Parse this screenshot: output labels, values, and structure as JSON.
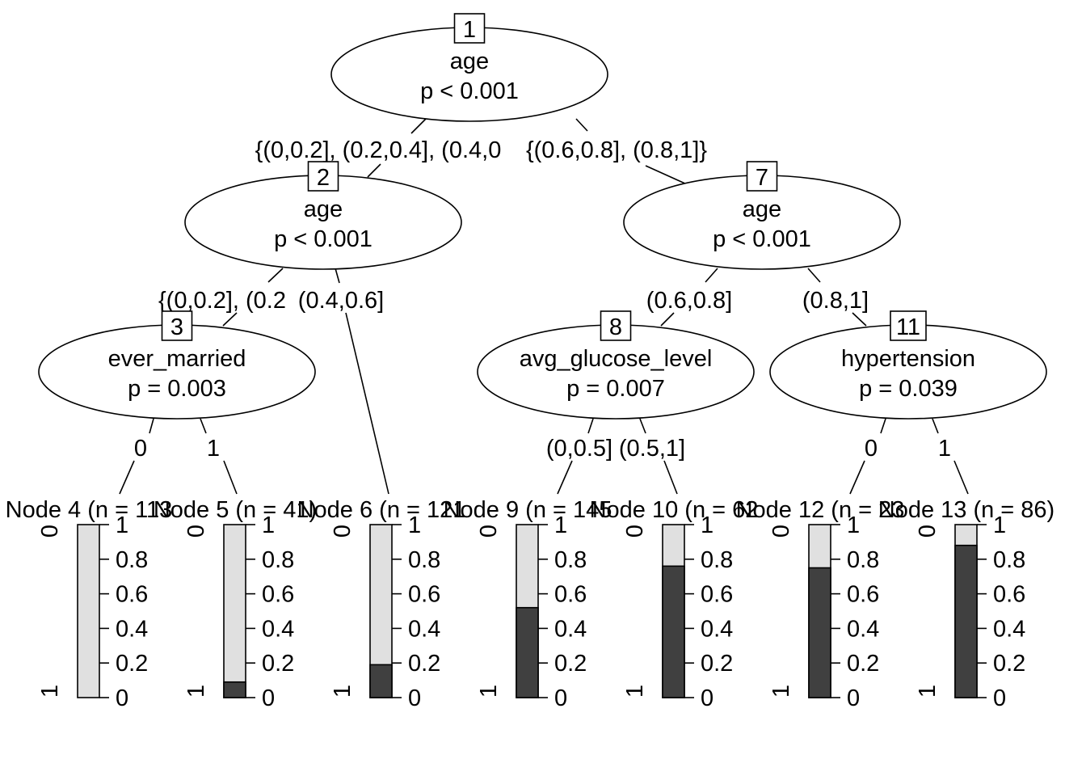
{
  "inner_nodes": [
    {
      "id": "1",
      "variable": "age",
      "p": "p < 0.001"
    },
    {
      "id": "2",
      "variable": "age",
      "p": "p < 0.001"
    },
    {
      "id": "3",
      "variable": "ever_married",
      "p": "p = 0.003"
    },
    {
      "id": "7",
      "variable": "age",
      "p": "p < 0.001"
    },
    {
      "id": "8",
      "variable": "avg_glucose_level",
      "p": "p = 0.007"
    },
    {
      "id": "11",
      "variable": "hypertension",
      "p": "p = 0.039"
    }
  ],
  "edge_labels": [
    "{(0,0.2], (0.2,0.4], (0.4,0",
    "{(0.6,0.8], (0.8,1]}",
    "{(0,0.2], (0.2",
    "(0.4,0.6]",
    "0",
    "1",
    "(0.6,0.8]",
    "(0.8,1]",
    "(0,0.5]",
    "(0.5,1]",
    "0",
    "1"
  ],
  "terminal_nodes": [
    {
      "id": "4",
      "label": "Node 4 (n = 113",
      "stroke_fraction": 0.0
    },
    {
      "id": "5",
      "label": "Node 5 (n = 41)",
      "stroke_fraction": 0.09
    },
    {
      "id": "6",
      "label": "Node 6 (n = 121",
      "stroke_fraction": 0.19
    },
    {
      "id": "9",
      "label": "Node 9 (n = 145",
      "stroke_fraction": 0.52
    },
    {
      "id": "10",
      "label": "Node 10 (n = 62",
      "stroke_fraction": 0.76
    },
    {
      "id": "12",
      "label": "Node 12 (n = 23",
      "stroke_fraction": 0.75
    },
    {
      "id": "13",
      "label": "Node 13 (n = 86)",
      "stroke_fraction": 0.88
    }
  ],
  "axis": {
    "ticks": [
      "1",
      "0.8",
      "0.6",
      "0.4",
      "0.2",
      "0"
    ],
    "category_top": "0",
    "category_bottom": "1"
  },
  "colors": {
    "stroke_no": "#e0e0e0",
    "stroke_yes": "#404040"
  }
}
